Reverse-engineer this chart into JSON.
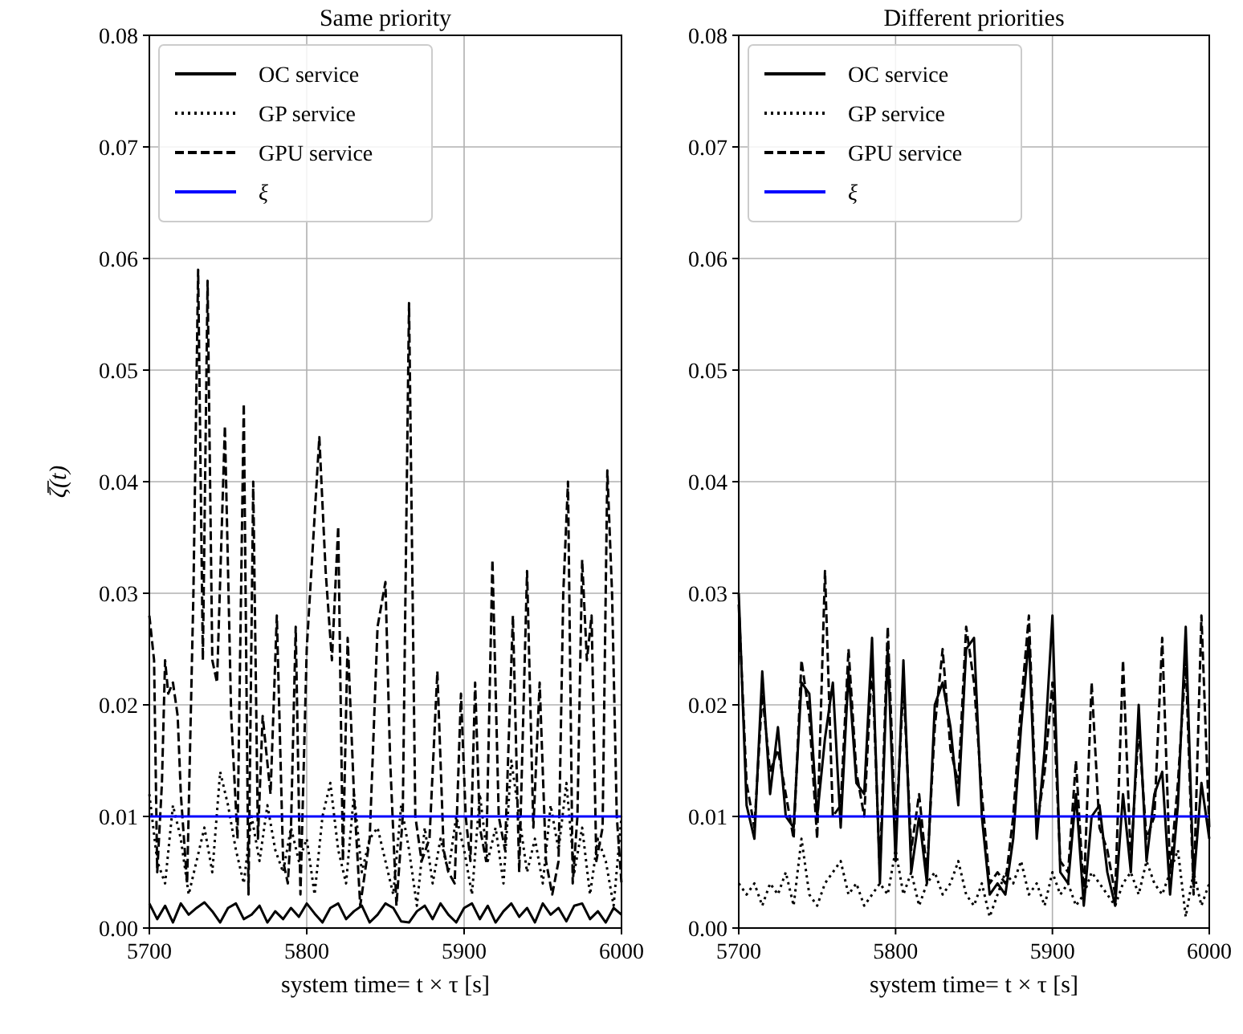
{
  "chart_data": [
    {
      "type": "line",
      "title": "Same priority",
      "xlabel": "system time= t × τ [s]",
      "ylabel": "ζ̅(t)",
      "xlim": [
        5700,
        6000
      ],
      "xticks": [
        5700,
        5800,
        5900,
        6000
      ],
      "ylim": [
        0,
        0.08
      ],
      "yticks": [
        {
          "value": 0,
          "label": "0.00"
        },
        {
          "value": 0.01,
          "label": "0.01"
        },
        {
          "value": 0.02,
          "label": "0.02"
        },
        {
          "value": 0.03,
          "label": "0.03"
        },
        {
          "value": 0.04,
          "label": "0.04"
        },
        {
          "value": 0.05,
          "label": "0.05"
        },
        {
          "value": 0.06,
          "label": "0.06"
        },
        {
          "value": 0.07,
          "label": "0.07"
        },
        {
          "value": 0.08,
          "label": "0.08"
        }
      ],
      "grid": true,
      "legend": "top left",
      "x": [
        5700,
        5705,
        5710,
        5715,
        5720,
        5725,
        5730,
        5735,
        5740,
        5745,
        5750,
        5755,
        5760,
        5765,
        5770,
        5775,
        5780,
        5785,
        5790,
        5795,
        5800,
        5805,
        5810,
        5815,
        5820,
        5825,
        5830,
        5835,
        5840,
        5845,
        5850,
        5855,
        5860,
        5865,
        5870,
        5875,
        5880,
        5885,
        5890,
        5895,
        5900,
        5905,
        5910,
        5915,
        5920,
        5925,
        5930,
        5935,
        5940,
        5945,
        5950,
        5955,
        5960,
        5965,
        5970,
        5975,
        5980,
        5985,
        5990,
        5995,
        6000
      ],
      "series": [
        {
          "name": "OC service",
          "color": "#000000",
          "line_style": "solid",
          "values": [
            0.0022,
            0.0008,
            0.002,
            0.0005,
            0.0022,
            0.0012,
            0.0018,
            0.0023,
            0.0015,
            0.0005,
            0.0018,
            0.0022,
            0.0008,
            0.0012,
            0.002,
            0.0005,
            0.0015,
            0.0008,
            0.0018,
            0.001,
            0.0022,
            0.0013,
            0.0005,
            0.0018,
            0.0022,
            0.0008,
            0.0015,
            0.002,
            0.0005,
            0.0012,
            0.0022,
            0.0018,
            0.0006,
            0.0005,
            0.0015,
            0.002,
            0.0008,
            0.0022,
            0.0012,
            0.0005,
            0.0018,
            0.0022,
            0.0008,
            0.002,
            0.0005,
            0.0015,
            0.0022,
            0.001,
            0.0018,
            0.0005,
            0.0022,
            0.0012,
            0.0018,
            0.0006,
            0.002,
            0.0022,
            0.0008,
            0.0015,
            0.0005,
            0.0018,
            0.0012
          ]
        },
        {
          "name": "GP service",
          "color": "#000000",
          "line_style": "dotted",
          "values": [
            0.012,
            0.006,
            0.004,
            0.011,
            0.008,
            0.003,
            0.006,
            0.009,
            0.005,
            0.014,
            0.011,
            0.007,
            0.004,
            0.01,
            0.006,
            0.011,
            0.007,
            0.005,
            0.009,
            0.006,
            0.008,
            0.003,
            0.01,
            0.013,
            0.007,
            0.004,
            0.012,
            0.005,
            0.008,
            0.009,
            0.006,
            0.003,
            0.011,
            0.007,
            0.002,
            0.009,
            0.004,
            0.008,
            0.005,
            0.01,
            0.007,
            0.003,
            0.012,
            0.006,
            0.009,
            0.004,
            0.015,
            0.01,
            0.005,
            0.008,
            0.004,
            0.011,
            0.007,
            0.013,
            0.005,
            0.009,
            0.003,
            0.008,
            0.006,
            0.002,
            0.01
          ]
        },
        {
          "name": "GPU service",
          "color": "#000000",
          "line_style": "dashed",
          "x": [
            5700,
            5703,
            5705,
            5708,
            5710,
            5712,
            5715,
            5718,
            5720,
            5724,
            5728,
            5731,
            5734,
            5737,
            5740,
            5743,
            5748,
            5752,
            5756,
            5760,
            5763,
            5766,
            5769,
            5772,
            5777,
            5781,
            5785,
            5788,
            5790,
            5793,
            5796,
            5800,
            5808,
            5812,
            5816,
            5820,
            5823,
            5826,
            5830,
            5834,
            5840,
            5845,
            5850,
            5853,
            5857,
            5861,
            5865,
            5869,
            5873,
            5878,
            5883,
            5887,
            5890,
            5894,
            5898,
            5901,
            5904,
            5907,
            5910,
            5914,
            5918,
            5922,
            5926,
            5931,
            5935,
            5940,
            5944,
            5948,
            5952,
            5956,
            5960,
            5963,
            5966,
            5969,
            5972,
            5975,
            5978,
            5981,
            5984,
            5988,
            5991,
            5994,
            5997,
            6000
          ],
          "values": [
            0.028,
            0.024,
            0.005,
            0.013,
            0.024,
            0.021,
            0.022,
            0.019,
            0.012,
            0.004,
            0.03,
            0.059,
            0.024,
            0.058,
            0.024,
            0.022,
            0.045,
            0.019,
            0.008,
            0.047,
            0.003,
            0.04,
            0.008,
            0.019,
            0.012,
            0.028,
            0.006,
            0.004,
            0.009,
            0.027,
            0.003,
            0.025,
            0.044,
            0.032,
            0.024,
            0.036,
            0.006,
            0.026,
            0.012,
            0.002,
            0.008,
            0.027,
            0.031,
            0.015,
            0.002,
            0.01,
            0.056,
            0.01,
            0.006,
            0.008,
            0.023,
            0.007,
            0.005,
            0.004,
            0.021,
            0.01,
            0.006,
            0.022,
            0.009,
            0.006,
            0.033,
            0.01,
            0.007,
            0.028,
            0.005,
            0.032,
            0.009,
            0.022,
            0.006,
            0.003,
            0.006,
            0.03,
            0.04,
            0.004,
            0.01,
            0.033,
            0.024,
            0.028,
            0.006,
            0.009,
            0.041,
            0.03,
            0.01,
            0.004
          ]
        },
        {
          "name": "ξ",
          "color": "#0000ff",
          "line_style": "solid",
          "x": [
            5700,
            6000
          ],
          "values": [
            0.01,
            0.01
          ]
        }
      ]
    },
    {
      "type": "line",
      "title": "Different priorities",
      "xlabel": "system time= t × τ [s]",
      "xlim": [
        5700,
        6000
      ],
      "xticks": [
        5700,
        5800,
        5900,
        6000
      ],
      "ylim": [
        0,
        0.08
      ],
      "yticks": [
        {
          "value": 0,
          "label": "0.00"
        },
        {
          "value": 0.01,
          "label": "0.01"
        },
        {
          "value": 0.02,
          "label": "0.02"
        },
        {
          "value": 0.03,
          "label": "0.03"
        },
        {
          "value": 0.04,
          "label": "0.04"
        },
        {
          "value": 0.05,
          "label": "0.05"
        },
        {
          "value": 0.06,
          "label": "0.06"
        },
        {
          "value": 0.07,
          "label": "0.07"
        },
        {
          "value": 0.08,
          "label": "0.08"
        }
      ],
      "grid": true,
      "legend": "top left",
      "x": [
        5700,
        5705,
        5710,
        5715,
        5720,
        5725,
        5730,
        5735,
        5740,
        5745,
        5750,
        5755,
        5760,
        5765,
        5770,
        5775,
        5780,
        5785,
        5790,
        5795,
        5800,
        5805,
        5810,
        5815,
        5820,
        5825,
        5830,
        5835,
        5840,
        5845,
        5850,
        5855,
        5860,
        5865,
        5870,
        5875,
        5880,
        5885,
        5890,
        5895,
        5900,
        5905,
        5910,
        5915,
        5920,
        5925,
        5930,
        5935,
        5940,
        5945,
        5950,
        5955,
        5960,
        5965,
        5970,
        5975,
        5980,
        5985,
        5990,
        5995,
        6000
      ],
      "series": [
        {
          "name": "OC service",
          "color": "#000000",
          "line_style": "solid",
          "values": [
            0.03,
            0.011,
            0.008,
            0.023,
            0.012,
            0.018,
            0.01,
            0.009,
            0.022,
            0.021,
            0.01,
            0.017,
            0.022,
            0.009,
            0.023,
            0.013,
            0.012,
            0.026,
            0.004,
            0.025,
            0.006,
            0.024,
            0.005,
            0.01,
            0.004,
            0.02,
            0.022,
            0.018,
            0.011,
            0.025,
            0.026,
            0.01,
            0.003,
            0.004,
            0.003,
            0.008,
            0.018,
            0.026,
            0.008,
            0.016,
            0.028,
            0.005,
            0.004,
            0.012,
            0.002,
            0.01,
            0.011,
            0.005,
            0.002,
            0.012,
            0.005,
            0.02,
            0.006,
            0.012,
            0.014,
            0.003,
            0.011,
            0.027,
            0.004,
            0.013,
            0.008
          ]
        },
        {
          "name": "GP service",
          "color": "#000000",
          "line_style": "dotted",
          "values": [
            0.004,
            0.003,
            0.004,
            0.002,
            0.004,
            0.003,
            0.005,
            0.002,
            0.008,
            0.003,
            0.002,
            0.004,
            0.005,
            0.006,
            0.003,
            0.004,
            0.002,
            0.003,
            0.004,
            0.003,
            0.007,
            0.003,
            0.005,
            0.002,
            0.004,
            0.005,
            0.003,
            0.004,
            0.006,
            0.003,
            0.002,
            0.004,
            0.001,
            0.003,
            0.005,
            0.004,
            0.006,
            0.003,
            0.004,
            0.002,
            0.005,
            0.003,
            0.004,
            0.002,
            0.003,
            0.005,
            0.004,
            0.003,
            0.002,
            0.004,
            0.005,
            0.003,
            0.006,
            0.004,
            0.003,
            0.005,
            0.007,
            0.001,
            0.005,
            0.002,
            0.004
          ]
        },
        {
          "name": "GPU service",
          "color": "#000000",
          "line_style": "dashed",
          "values": [
            0.029,
            0.013,
            0.009,
            0.021,
            0.014,
            0.016,
            0.012,
            0.008,
            0.024,
            0.019,
            0.008,
            0.032,
            0.01,
            0.011,
            0.025,
            0.014,
            0.01,
            0.024,
            0.005,
            0.027,
            0.008,
            0.022,
            0.007,
            0.012,
            0.005,
            0.018,
            0.025,
            0.016,
            0.013,
            0.027,
            0.022,
            0.012,
            0.004,
            0.005,
            0.004,
            0.01,
            0.02,
            0.028,
            0.009,
            0.014,
            0.022,
            0.006,
            0.005,
            0.015,
            0.003,
            0.022,
            0.009,
            0.007,
            0.003,
            0.024,
            0.006,
            0.018,
            0.008,
            0.01,
            0.026,
            0.005,
            0.013,
            0.024,
            0.003,
            0.028,
            0.009
          ]
        },
        {
          "name": "ξ",
          "color": "#0000ff",
          "line_style": "solid",
          "x": [
            5700,
            6000
          ],
          "values": [
            0.01,
            0.01
          ]
        }
      ]
    }
  ]
}
